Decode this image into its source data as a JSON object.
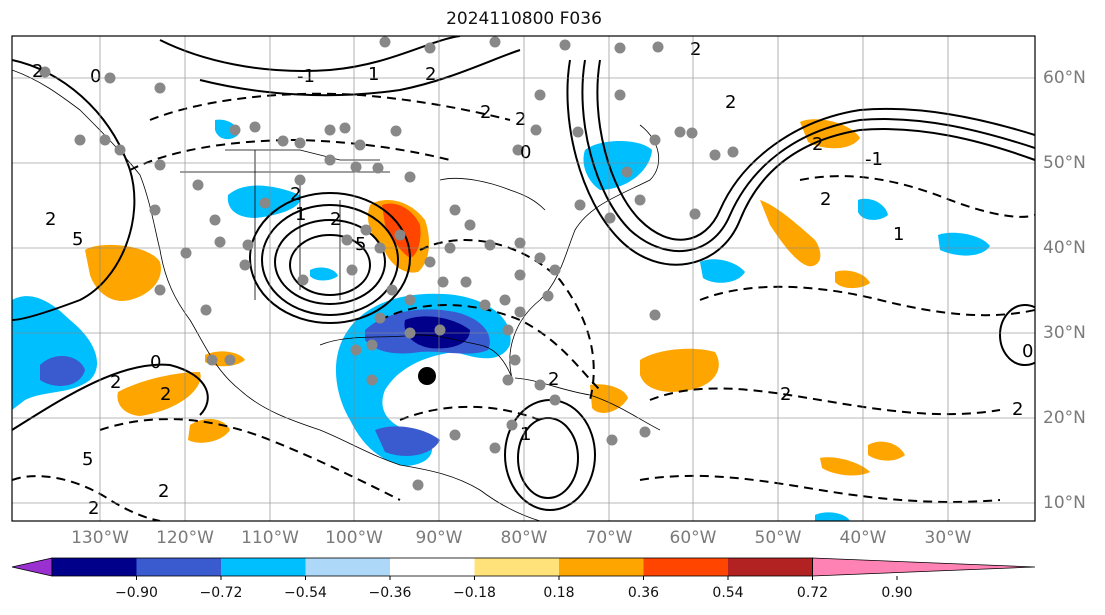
{
  "title": "2024110800 F036",
  "map": {
    "lon_labels": [
      "130°W",
      "120°W",
      "110°W",
      "100°W",
      "90°W",
      "80°W",
      "70°W",
      "60°W",
      "50°W",
      "40°W",
      "30°W"
    ],
    "lat_labels": [
      "60°N",
      "50°N",
      "40°N",
      "30°N",
      "20°N",
      "10°N"
    ],
    "contour_labels": [
      "2",
      "0",
      "2",
      "5",
      "1",
      "2",
      "5",
      "2",
      "-1",
      "1",
      "2",
      "2",
      "2",
      "0",
      "2",
      "2",
      "2",
      "-1",
      "1",
      "2",
      "2",
      "2",
      "1",
      "2",
      "0",
      "2",
      "5",
      "2",
      "2",
      "0",
      "2"
    ],
    "marker": "storm-center-dot"
  },
  "colorbar": {
    "ticks": [
      "−0.90",
      "−0.72",
      "−0.54",
      "−0.36",
      "−0.18",
      "0.18",
      "0.36",
      "0.54",
      "0.72",
      "0.90"
    ],
    "colors": [
      "#9b30d0",
      "#00008b",
      "#3a5bd0",
      "#00bfff",
      "#add8f7",
      "#ffffff",
      "#ffe27a",
      "#ffa500",
      "#ff4500",
      "#b22222",
      "#ff82b4"
    ]
  }
}
